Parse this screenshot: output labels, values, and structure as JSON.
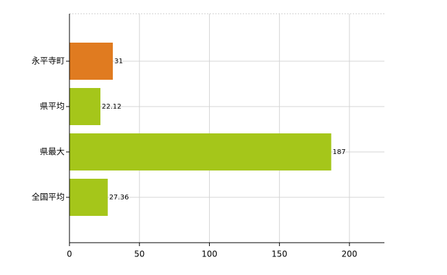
{
  "chart_data": {
    "type": "bar",
    "orientation": "horizontal",
    "categories": [
      "永平寺町",
      "県平均",
      "県最大",
      "全国平均"
    ],
    "values": [
      31,
      22.12,
      187,
      27.36
    ],
    "colors": [
      "#e07b20",
      "#a5c61a",
      "#a5c61a",
      "#a5c61a"
    ],
    "xlim": [
      0,
      225
    ],
    "xticks": [
      0,
      50,
      100,
      150,
      200
    ],
    "grid": true
  }
}
